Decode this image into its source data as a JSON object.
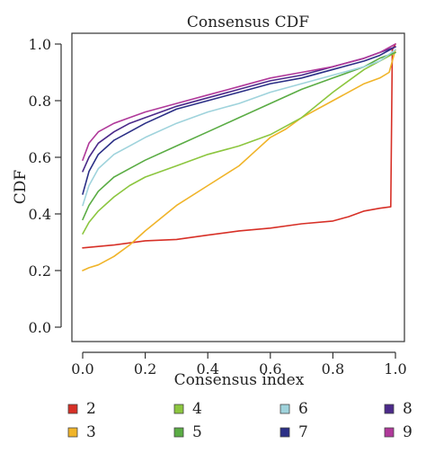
{
  "chart_data": {
    "type": "line",
    "title": "Consensus CDF",
    "xlabel": "Consensus index",
    "ylabel": "CDF",
    "xlim": [
      0,
      1
    ],
    "ylim": [
      0,
      1
    ],
    "xticks": [
      {
        "value": 0.0,
        "label": "0.0"
      },
      {
        "value": 0.2,
        "label": "0.2"
      },
      {
        "value": 0.4,
        "label": "0.4"
      },
      {
        "value": 0.6,
        "label": "0.6"
      },
      {
        "value": 0.8,
        "label": "0.8"
      },
      {
        "value": 1.0,
        "label": "1.0"
      }
    ],
    "yticks": [
      {
        "value": 0.0,
        "label": "0.0"
      },
      {
        "value": 0.2,
        "label": "0.2"
      },
      {
        "value": 0.4,
        "label": "0.4"
      },
      {
        "value": 0.6,
        "label": "0.6"
      },
      {
        "value": 0.8,
        "label": "0.8"
      },
      {
        "value": 1.0,
        "label": "1.0"
      }
    ],
    "grid": false,
    "legend_position": "bottom",
    "series": [
      {
        "name": "2",
        "color": "#d73027",
        "x": [
          0.0,
          0.05,
          0.1,
          0.2,
          0.3,
          0.4,
          0.5,
          0.6,
          0.7,
          0.8,
          0.85,
          0.9,
          0.95,
          0.985,
          0.99,
          1.0
        ],
        "y": [
          0.28,
          0.285,
          0.29,
          0.305,
          0.31,
          0.325,
          0.34,
          0.35,
          0.365,
          0.375,
          0.39,
          0.41,
          0.42,
          0.425,
          0.98,
          1.0
        ]
      },
      {
        "name": "3",
        "color": "#f0b429",
        "x": [
          0.0,
          0.02,
          0.05,
          0.1,
          0.15,
          0.2,
          0.3,
          0.4,
          0.5,
          0.55,
          0.6,
          0.65,
          0.7,
          0.8,
          0.9,
          0.95,
          0.98,
          1.0
        ],
        "y": [
          0.2,
          0.21,
          0.22,
          0.25,
          0.29,
          0.34,
          0.43,
          0.5,
          0.57,
          0.62,
          0.67,
          0.7,
          0.74,
          0.8,
          0.86,
          0.88,
          0.9,
          0.98
        ]
      },
      {
        "name": "4",
        "color": "#8cc63f",
        "x": [
          0.0,
          0.02,
          0.05,
          0.1,
          0.15,
          0.2,
          0.3,
          0.4,
          0.5,
          0.6,
          0.7,
          0.8,
          0.9,
          0.95,
          1.0
        ],
        "y": [
          0.33,
          0.37,
          0.41,
          0.46,
          0.5,
          0.53,
          0.57,
          0.61,
          0.64,
          0.68,
          0.74,
          0.83,
          0.91,
          0.94,
          0.97
        ]
      },
      {
        "name": "5",
        "color": "#5aac44",
        "x": [
          0.0,
          0.02,
          0.05,
          0.1,
          0.15,
          0.2,
          0.3,
          0.4,
          0.5,
          0.6,
          0.7,
          0.8,
          0.9,
          0.95,
          1.0
        ],
        "y": [
          0.38,
          0.43,
          0.48,
          0.53,
          0.56,
          0.59,
          0.64,
          0.69,
          0.74,
          0.79,
          0.84,
          0.88,
          0.92,
          0.95,
          0.97
        ]
      },
      {
        "name": "6",
        "color": "#9fd3dc",
        "x": [
          0.0,
          0.02,
          0.05,
          0.1,
          0.15,
          0.2,
          0.3,
          0.4,
          0.5,
          0.6,
          0.7,
          0.8,
          0.9,
          0.95,
          1.0
        ],
        "y": [
          0.43,
          0.5,
          0.56,
          0.61,
          0.64,
          0.67,
          0.72,
          0.76,
          0.79,
          0.83,
          0.86,
          0.89,
          0.92,
          0.94,
          0.98
        ]
      },
      {
        "name": "7",
        "color": "#2b2f86",
        "x": [
          0.0,
          0.02,
          0.05,
          0.1,
          0.15,
          0.2,
          0.3,
          0.4,
          0.5,
          0.6,
          0.7,
          0.8,
          0.9,
          0.95,
          1.0
        ],
        "y": [
          0.47,
          0.55,
          0.61,
          0.66,
          0.69,
          0.72,
          0.77,
          0.8,
          0.83,
          0.86,
          0.88,
          0.91,
          0.94,
          0.96,
          0.99
        ]
      },
      {
        "name": "8",
        "color": "#4b2a8a",
        "x": [
          0.0,
          0.02,
          0.05,
          0.1,
          0.15,
          0.2,
          0.3,
          0.4,
          0.5,
          0.6,
          0.7,
          0.8,
          0.9,
          0.95,
          1.0
        ],
        "y": [
          0.55,
          0.6,
          0.65,
          0.69,
          0.72,
          0.74,
          0.78,
          0.81,
          0.84,
          0.87,
          0.89,
          0.92,
          0.95,
          0.97,
          0.99
        ]
      },
      {
        "name": "9",
        "color": "#b0399a",
        "x": [
          0.0,
          0.02,
          0.05,
          0.1,
          0.15,
          0.2,
          0.3,
          0.4,
          0.5,
          0.6,
          0.7,
          0.8,
          0.9,
          0.95,
          1.0
        ],
        "y": [
          0.59,
          0.65,
          0.69,
          0.72,
          0.74,
          0.76,
          0.79,
          0.82,
          0.85,
          0.88,
          0.9,
          0.92,
          0.95,
          0.97,
          1.0
        ]
      }
    ]
  }
}
